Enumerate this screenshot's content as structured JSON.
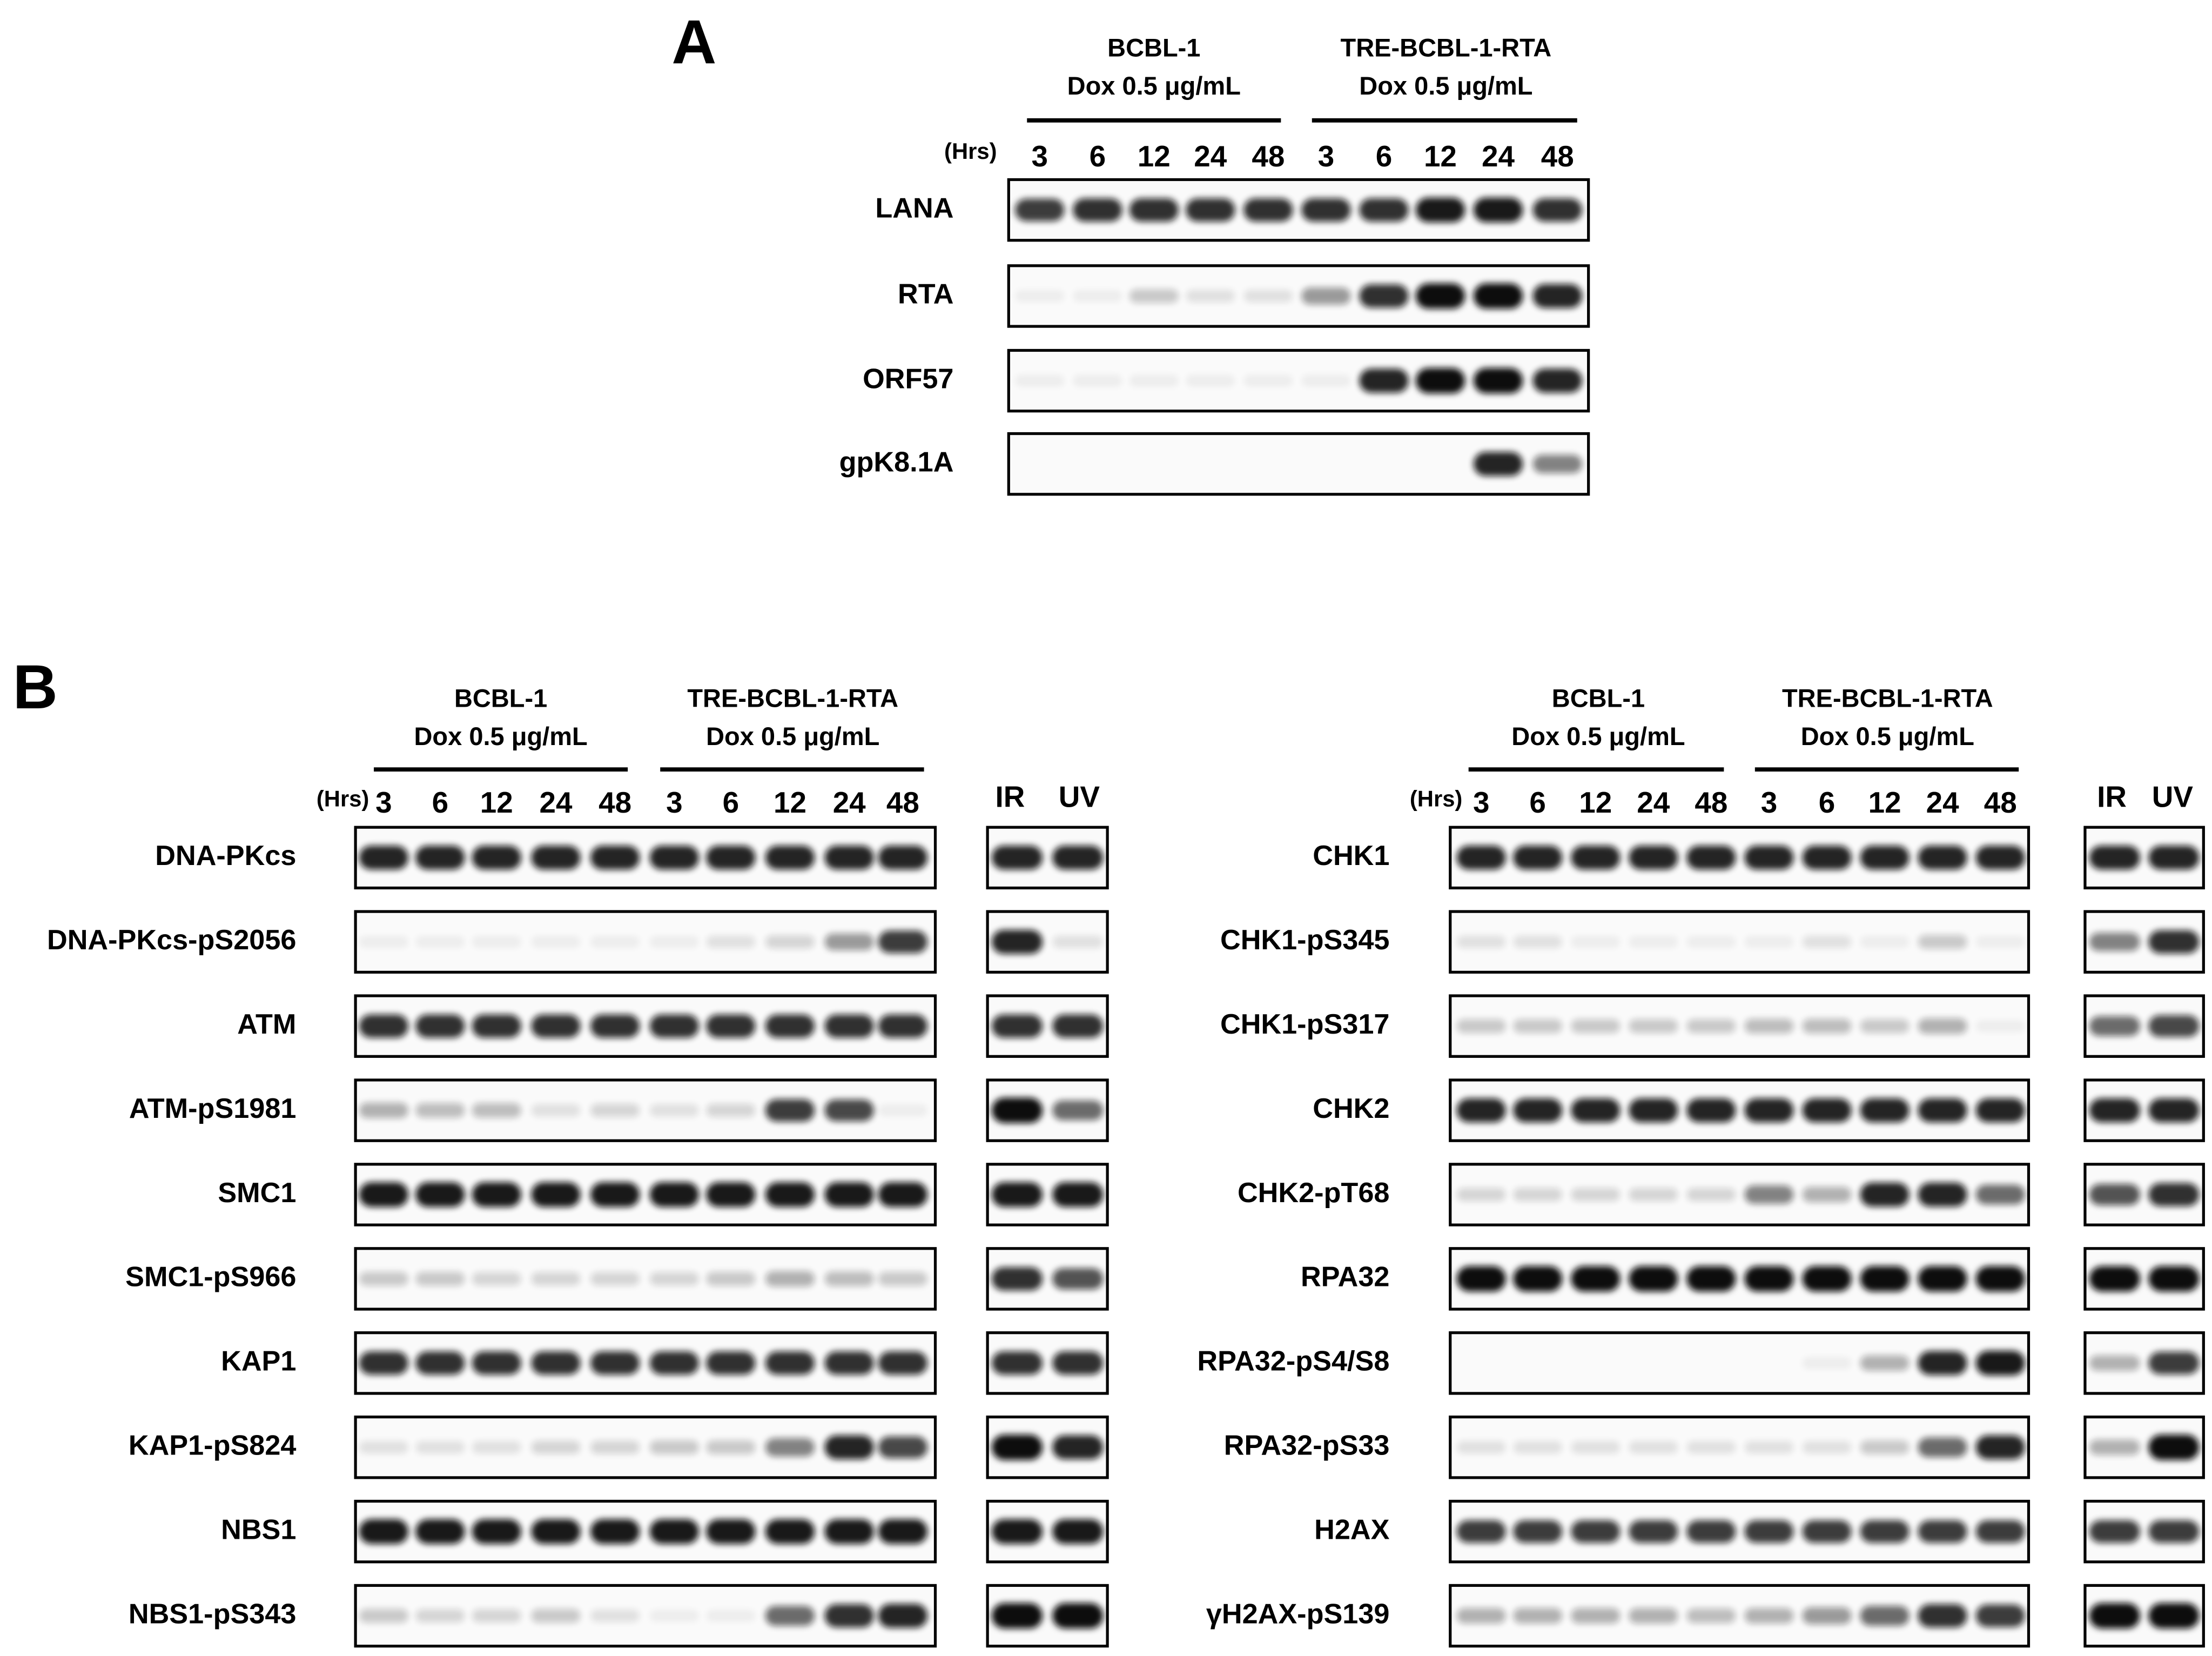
{
  "panel_a": {
    "label": "A",
    "time_unit": "(Hrs)",
    "groups": [
      {
        "name": "BCBL-1",
        "treatment": "Dox 0.5 μg/mL"
      },
      {
        "name": "TRE-BCBL-1-RTA",
        "treatment": "Dox 0.5 μg/mL"
      }
    ],
    "timepoints": [
      "3",
      "6",
      "12",
      "24",
      "48",
      "3",
      "6",
      "12",
      "24",
      "48"
    ],
    "proteins": [
      "LANA",
      "RTA",
      "ORF57",
      "gpK8.1A"
    ]
  },
  "panel_b": {
    "label": "B",
    "left": {
      "time_unit": "(Hrs)",
      "groups": [
        {
          "name": "BCBL-1",
          "treatment": "Dox 0.5 μg/mL"
        },
        {
          "name": "TRE-BCBL-1-RTA",
          "treatment": "Dox 0.5 μg/mL"
        }
      ],
      "timepoints": [
        "3",
        "6",
        "12",
        "24",
        "48",
        "3",
        "6",
        "12",
        "24",
        "48"
      ],
      "controls": [
        "IR",
        "UV"
      ],
      "proteins": [
        "DNA-PKcs",
        "DNA-PKcs-pS2056",
        "ATM",
        "ATM-pS1981",
        "SMC1",
        "SMC1-pS966",
        "KAP1",
        "KAP1-pS824",
        "NBS1",
        "NBS1-pS343"
      ]
    },
    "right": {
      "time_unit": "(Hrs)",
      "groups": [
        {
          "name": "BCBL-1",
          "treatment": "Dox 0.5 μg/mL"
        },
        {
          "name": "TRE-BCBL-1-RTA",
          "treatment": "Dox 0.5 μg/mL"
        }
      ],
      "timepoints": [
        "3",
        "6",
        "12",
        "24",
        "48",
        "3",
        "6",
        "12",
        "24",
        "48"
      ],
      "controls": [
        "IR",
        "UV"
      ],
      "proteins": [
        "CHK1",
        "CHK1-pS345",
        "CHK1-pS317",
        "CHK2",
        "CHK2-pT68",
        "RPA32",
        "RPA32-pS4/S8",
        "RPA32-pS33",
        "H2AX",
        "γH2AX-pS139"
      ]
    }
  }
}
